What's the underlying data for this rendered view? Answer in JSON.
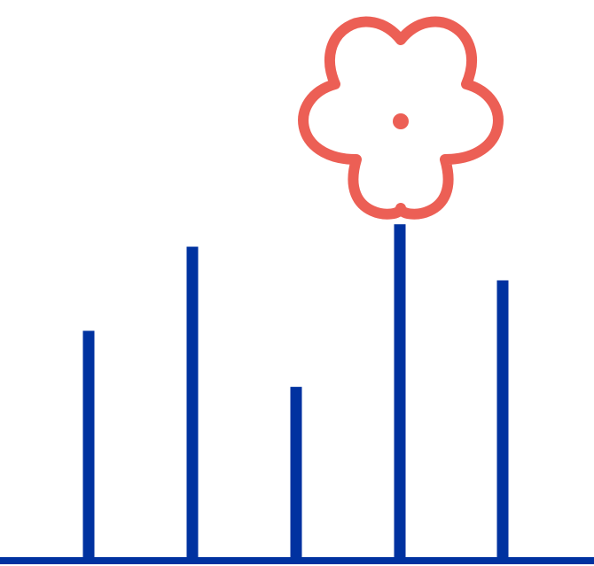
{
  "colors": {
    "background": "#ffffff",
    "stems": "#0032a0",
    "flower": "#ec5f55"
  },
  "icons": {
    "flower": "flower-icon"
  },
  "stems": {
    "count": 5,
    "relative_heights": [
      0.41,
      0.56,
      0.31,
      0.6,
      0.5
    ],
    "flowered_stem_index": 3
  }
}
